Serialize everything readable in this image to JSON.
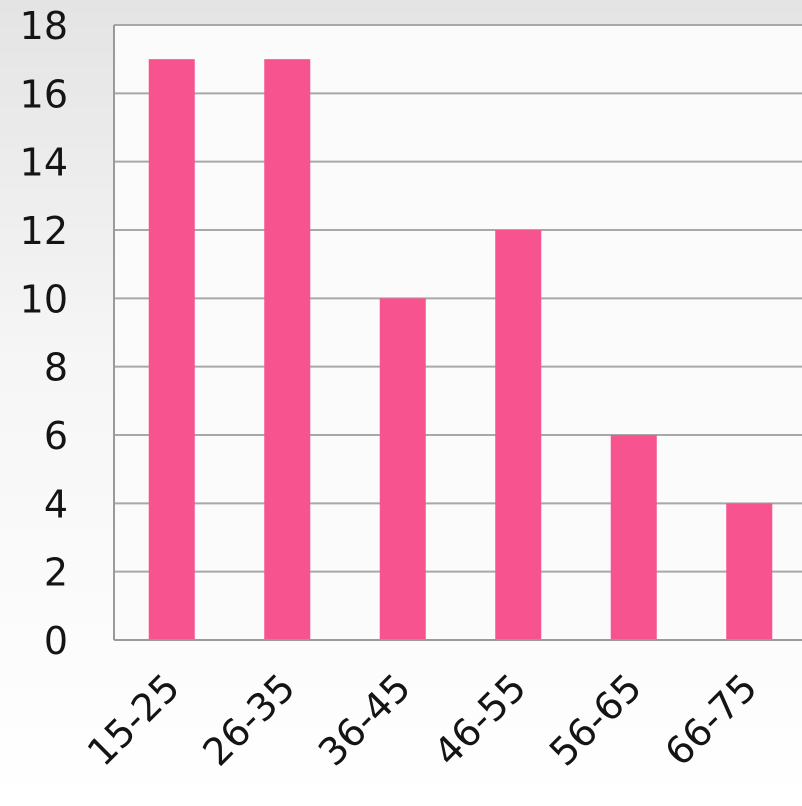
{
  "chart_data": {
    "type": "bar",
    "categories": [
      "15-25",
      "26-35",
      "36-45",
      "46-55",
      "56-65",
      "66-75"
    ],
    "values": [
      17,
      17,
      10,
      12,
      6,
      4
    ],
    "title": "",
    "xlabel": "",
    "ylabel": "",
    "ylim": [
      0,
      18
    ],
    "yticks": [
      0,
      2,
      4,
      6,
      8,
      10,
      12,
      14,
      16,
      18
    ],
    "grid": true,
    "legend": "none",
    "bar_color": "#f7538f",
    "grid_color": "#a8a8a8"
  }
}
